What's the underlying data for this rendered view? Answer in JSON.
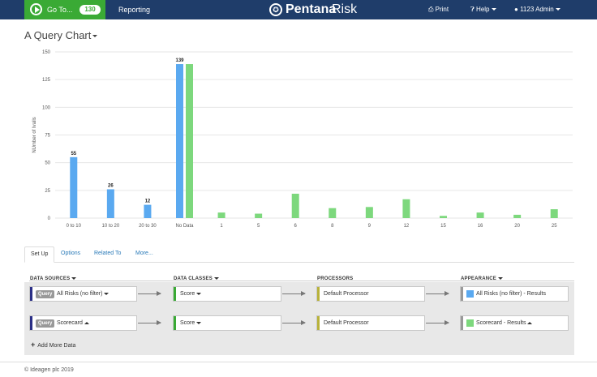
{
  "navbar": {
    "goto_label": "Go To...",
    "goto_count": "130",
    "reporting": "Reporting",
    "brand_name": "Pentana",
    "brand_product": "Risk",
    "print": "Print",
    "help": "Help",
    "user": "1123 Admin",
    "colors": {
      "bar": "#1f3d6a",
      "goto": "#3aaa35"
    }
  },
  "page": {
    "title": "A Query Chart"
  },
  "chart_data": {
    "type": "bar",
    "title": "",
    "xlabel": "",
    "ylabel": "NUmber of Ivalls",
    "ylim": [
      0,
      150
    ],
    "yticks": [
      0,
      25,
      50,
      75,
      100,
      125,
      150
    ],
    "grid": true,
    "categories": [
      "0 to 10",
      "10 to 20",
      "20 to 30",
      "No Data",
      "1",
      "5",
      "6",
      "8",
      "9",
      "12",
      "15",
      "16",
      "20",
      "25"
    ],
    "series": [
      {
        "color": "#5aa9f0",
        "values": [
          55,
          26,
          12,
          139,
          null,
          null,
          null,
          null,
          null,
          null,
          null,
          null,
          null,
          null
        ],
        "labels": [
          "55",
          "26",
          "12",
          "139",
          "",
          "",
          "",
          "",
          "",
          "",
          "",
          "",
          "",
          ""
        ]
      },
      {
        "color": "#7dd87d",
        "values": [
          null,
          null,
          null,
          139,
          5,
          4,
          22,
          9,
          10,
          17,
          2,
          5,
          3,
          8
        ],
        "labels": [
          "",
          "",
          "",
          "",
          "",
          "",
          "",
          "",
          "",
          "",
          "",
          "",
          "",
          ""
        ]
      }
    ]
  },
  "tabs": [
    "Set Up",
    "Options",
    "Related To",
    "More..."
  ],
  "config": {
    "headers": [
      "DATA SOURCES",
      "DATA CLASSES",
      "PROCESSORS",
      "APPEARANCE"
    ],
    "rows": [
      {
        "badge": "Query",
        "source": "All Risks (no filter)",
        "source_caret": "down",
        "class": "Score",
        "processor": "Default Processor",
        "appearance": "All Risks (no filter) - Results",
        "swatch": "#5aa9f0"
      },
      {
        "badge": "Query",
        "source": "Scorecard",
        "source_caret": "up",
        "class": "Score",
        "processor": "Default Processor",
        "appearance": "Scorecard - Results",
        "swatch": "#7dd87d"
      }
    ],
    "add_more": "Add More Data",
    "stripe_colors": {
      "source": "#2b2f86",
      "class": "#3aaa35",
      "processor": "#b8b23a",
      "appearance": "#999999"
    }
  },
  "footer": "© Ideagen plc 2019"
}
